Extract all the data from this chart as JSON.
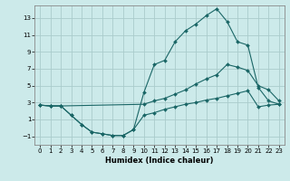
{
  "xlabel": "Humidex (Indice chaleur)",
  "bg_color": "#cceaea",
  "grid_color": "#aacccc",
  "line_color": "#1a6666",
  "xlim": [
    -0.5,
    23.5
  ],
  "ylim": [
    -2.0,
    14.5
  ],
  "xticks": [
    0,
    1,
    2,
    3,
    4,
    5,
    6,
    7,
    8,
    9,
    10,
    11,
    12,
    13,
    14,
    15,
    16,
    17,
    18,
    19,
    20,
    21,
    22,
    23
  ],
  "yticks": [
    -1,
    1,
    3,
    5,
    7,
    9,
    11,
    13
  ],
  "line1_x": [
    0,
    1,
    2,
    3,
    4,
    5,
    6,
    7,
    8,
    9,
    10,
    11,
    12,
    13,
    14,
    15,
    16,
    17,
    18,
    19,
    20,
    21,
    22,
    23
  ],
  "line1_y": [
    2.7,
    2.6,
    2.6,
    1.5,
    0.4,
    -0.5,
    -0.7,
    -0.9,
    -0.9,
    -0.2,
    4.2,
    7.5,
    8.0,
    10.2,
    11.5,
    12.3,
    13.3,
    14.1,
    12.6,
    10.2,
    9.8,
    4.8,
    3.2,
    2.8
  ],
  "line2_x": [
    0,
    1,
    2,
    10,
    11,
    12,
    13,
    14,
    15,
    16,
    17,
    18,
    19,
    20,
    21,
    22,
    23
  ],
  "line2_y": [
    2.7,
    2.6,
    2.6,
    2.8,
    3.2,
    3.5,
    4.0,
    4.5,
    5.2,
    5.8,
    6.3,
    7.5,
    7.2,
    6.8,
    5.0,
    4.5,
    3.2
  ],
  "line3_x": [
    0,
    1,
    2,
    3,
    4,
    5,
    6,
    7,
    8,
    9,
    10,
    11,
    12,
    13,
    14,
    15,
    16,
    17,
    18,
    19,
    20,
    21,
    22,
    23
  ],
  "line3_y": [
    2.7,
    2.6,
    2.6,
    1.5,
    0.4,
    -0.5,
    -0.7,
    -0.9,
    -0.9,
    -0.2,
    1.5,
    1.8,
    2.2,
    2.5,
    2.8,
    3.0,
    3.3,
    3.5,
    3.8,
    4.1,
    4.4,
    2.5,
    2.7,
    2.8
  ]
}
